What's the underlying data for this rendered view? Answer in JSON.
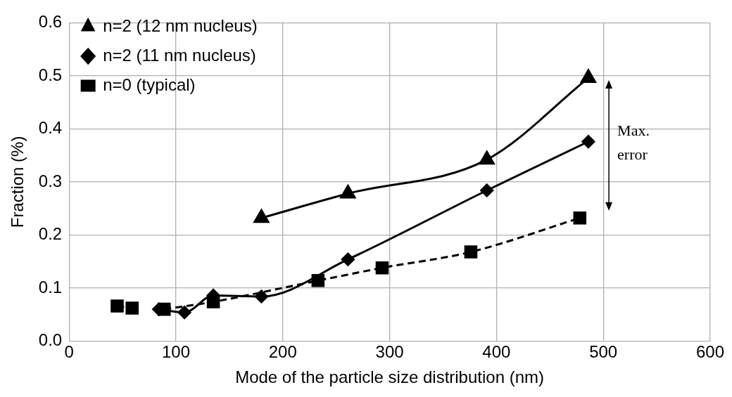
{
  "chart_data": {
    "type": "line",
    "xlabel": "Mode of the particle size distribution (nm)",
    "ylabel": "Fraction (%)",
    "xlim": [
      0,
      600
    ],
    "xticks": [
      0,
      100,
      200,
      300,
      400,
      500,
      600
    ],
    "ylim": [
      0,
      0.6
    ],
    "yticks": [
      {
        "value": 0,
        "label": "0.0"
      },
      0.1,
      0.2,
      0.3,
      0.4,
      0.5,
      0.6
    ],
    "grid": true,
    "legend": "top left",
    "annotations": [
      "Max. error"
    ],
    "series": [
      {
        "name": "n=2 (12 nm nucleus)",
        "color": "#000000",
        "marker": "triangle",
        "line_style": "solid",
        "x": [
          180,
          261,
          391,
          486
        ],
        "values": [
          0.232,
          0.278,
          0.342,
          0.496
        ]
      },
      {
        "name": "n=2 (11 nm nucleus)",
        "color": "#000000",
        "marker": "diamond",
        "line_style": "solid",
        "x": [
          84,
          108,
          135,
          180,
          261,
          391,
          486
        ],
        "values": [
          0.06,
          0.054,
          0.086,
          0.084,
          0.154,
          0.284,
          0.376
        ]
      },
      {
        "name": "n=0 (typical)",
        "color": "#000000",
        "marker": "square",
        "line_style": "dashed",
        "x": [
          45,
          59,
          82,
          89,
          135,
          233,
          293,
          376,
          478
        ],
        "values": [
          0.066,
          0.062,
          null,
          0.06,
          0.074,
          0.114,
          0.138,
          0.168,
          0.232
        ]
      }
    ]
  }
}
